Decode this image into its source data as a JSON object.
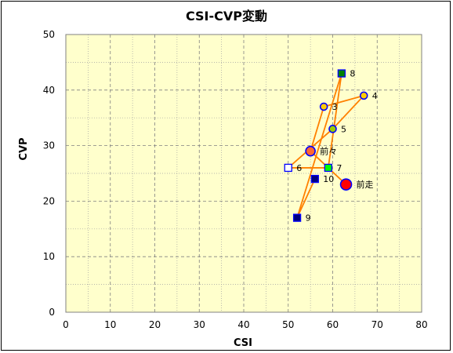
{
  "chart_data": {
    "type": "scatter",
    "title": "CSI-CVP変動",
    "xlabel": "CSI",
    "ylabel": "CVP",
    "xlim": [
      0,
      80
    ],
    "ylim": [
      0,
      50
    ],
    "x_ticks": [
      0,
      10,
      20,
      30,
      40,
      50,
      60,
      70,
      80
    ],
    "y_ticks": [
      0,
      10,
      20,
      30,
      40,
      50
    ],
    "grid": true,
    "plot_background": "#ffffcc",
    "line_color": "#ff8000",
    "points": [
      {
        "label": "前走",
        "x": 63,
        "y": 23,
        "shape": "circle",
        "size": "large",
        "fill": "#ff0000",
        "stroke": "#0000ff"
      },
      {
        "label": "前々",
        "x": 55,
        "y": 29,
        "shape": "circle",
        "size": "medium",
        "fill": "#ff6633",
        "stroke": "#0000ff"
      },
      {
        "label": "3",
        "x": 58,
        "y": 37,
        "shape": "circle",
        "size": "small",
        "fill": "#ffcc00",
        "stroke": "#0000ff"
      },
      {
        "label": "4",
        "x": 67,
        "y": 39,
        "shape": "circle",
        "size": "small",
        "fill": "#ffcc00",
        "stroke": "#0000ff"
      },
      {
        "label": "5",
        "x": 60,
        "y": 33,
        "shape": "circle",
        "size": "small",
        "fill": "#99cc00",
        "stroke": "#0000ff"
      },
      {
        "label": "6",
        "x": 50,
        "y": 26,
        "shape": "square",
        "size": "small",
        "fill": "#ffffff",
        "stroke": "#0000ff"
      },
      {
        "label": "7",
        "x": 59,
        "y": 26,
        "shape": "square",
        "size": "small",
        "fill": "#00ff00",
        "stroke": "#0000ff"
      },
      {
        "label": "8",
        "x": 62,
        "y": 43,
        "shape": "square",
        "size": "small",
        "fill": "#008000",
        "stroke": "#0000ff"
      },
      {
        "label": "9",
        "x": 52,
        "y": 17,
        "shape": "square",
        "size": "small",
        "fill": "#000080",
        "stroke": "#0000ff"
      },
      {
        "label": "10",
        "x": 56,
        "y": 24,
        "shape": "square",
        "size": "small",
        "fill": "#000080",
        "stroke": "#0000ff"
      }
    ]
  }
}
